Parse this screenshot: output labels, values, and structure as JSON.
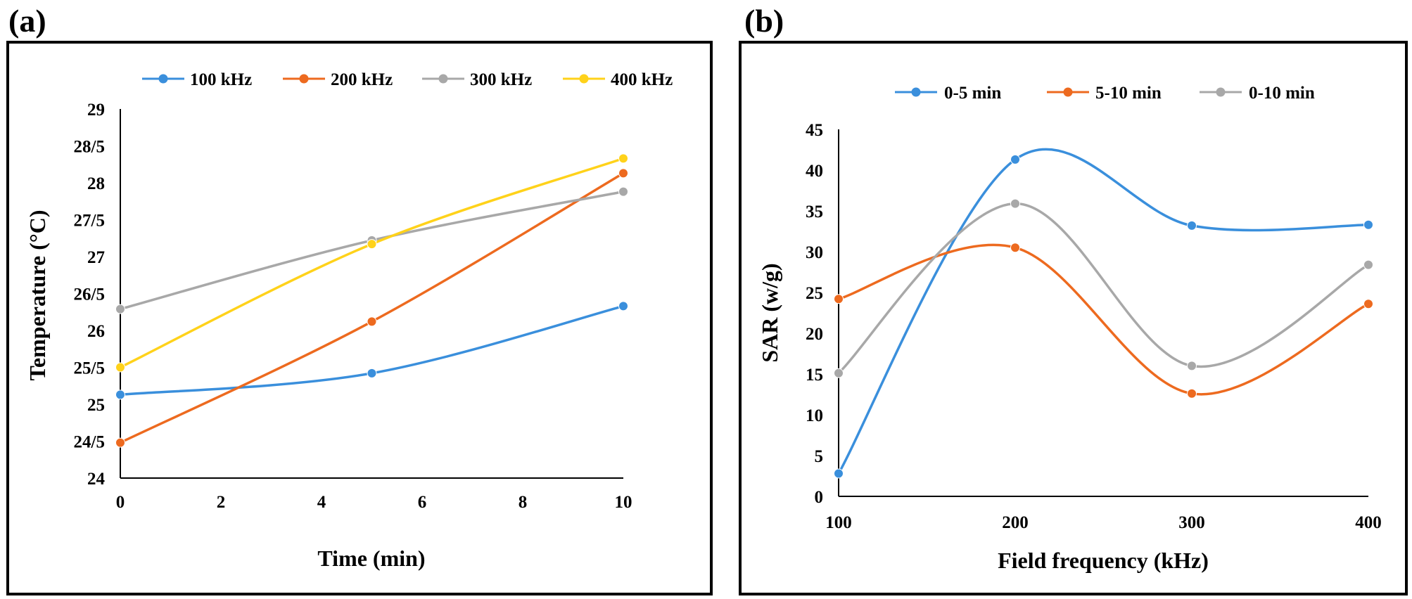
{
  "chart_data": [
    {
      "panel_label": "(a)",
      "type": "line",
      "smooth": true,
      "title": "",
      "xlabel": "Time (min)",
      "ylabel": "Temperature (°C)",
      "xlim": [
        0,
        10
      ],
      "ylim": [
        24,
        29
      ],
      "x_ticks": [
        "0",
        "2",
        "4",
        "6",
        "8",
        "10"
      ],
      "y_ticks": [
        "24",
        "24/5",
        "25",
        "25/5",
        "26",
        "26/5",
        "27",
        "27/5",
        "28",
        "28/5",
        "29"
      ],
      "legend_position": "top",
      "x": [
        0,
        5,
        10
      ],
      "series": [
        {
          "name": "100 kHz",
          "color": "#3a8fdc",
          "values": [
            25.13,
            25.42,
            26.33
          ]
        },
        {
          "name": "200 kHz",
          "color": "#ed6a1f",
          "values": [
            24.48,
            26.12,
            28.13
          ]
        },
        {
          "name": "300 kHz",
          "color": "#a8a8a8",
          "values": [
            26.29,
            27.22,
            27.88
          ]
        },
        {
          "name": "400 kHz",
          "color": "#ffd21a",
          "values": [
            25.5,
            27.17,
            28.33
          ]
        }
      ]
    },
    {
      "panel_label": "(b)",
      "type": "line",
      "smooth": true,
      "title": "",
      "xlabel": "Field frequency (kHz)",
      "ylabel": "SAR (w/g)",
      "xlim": [
        100,
        400
      ],
      "ylim": [
        0,
        45
      ],
      "x_ticks": [
        "100",
        "200",
        "300",
        "400"
      ],
      "y_ticks": [
        "0",
        "5",
        "10",
        "15",
        "20",
        "25",
        "30",
        "35",
        "40",
        "45"
      ],
      "legend_position": "top",
      "x": [
        100,
        200,
        300,
        400
      ],
      "series": [
        {
          "name": "0-5 min",
          "color": "#3a8fdc",
          "values": [
            2.8,
            41.3,
            33.2,
            33.3
          ]
        },
        {
          "name": "5-10 min",
          "color": "#ed6a1f",
          "values": [
            24.2,
            30.5,
            12.6,
            23.6
          ]
        },
        {
          "name": "0-10 min",
          "color": "#a8a8a8",
          "values": [
            15.1,
            35.9,
            16.0,
            28.4
          ]
        }
      ]
    }
  ]
}
